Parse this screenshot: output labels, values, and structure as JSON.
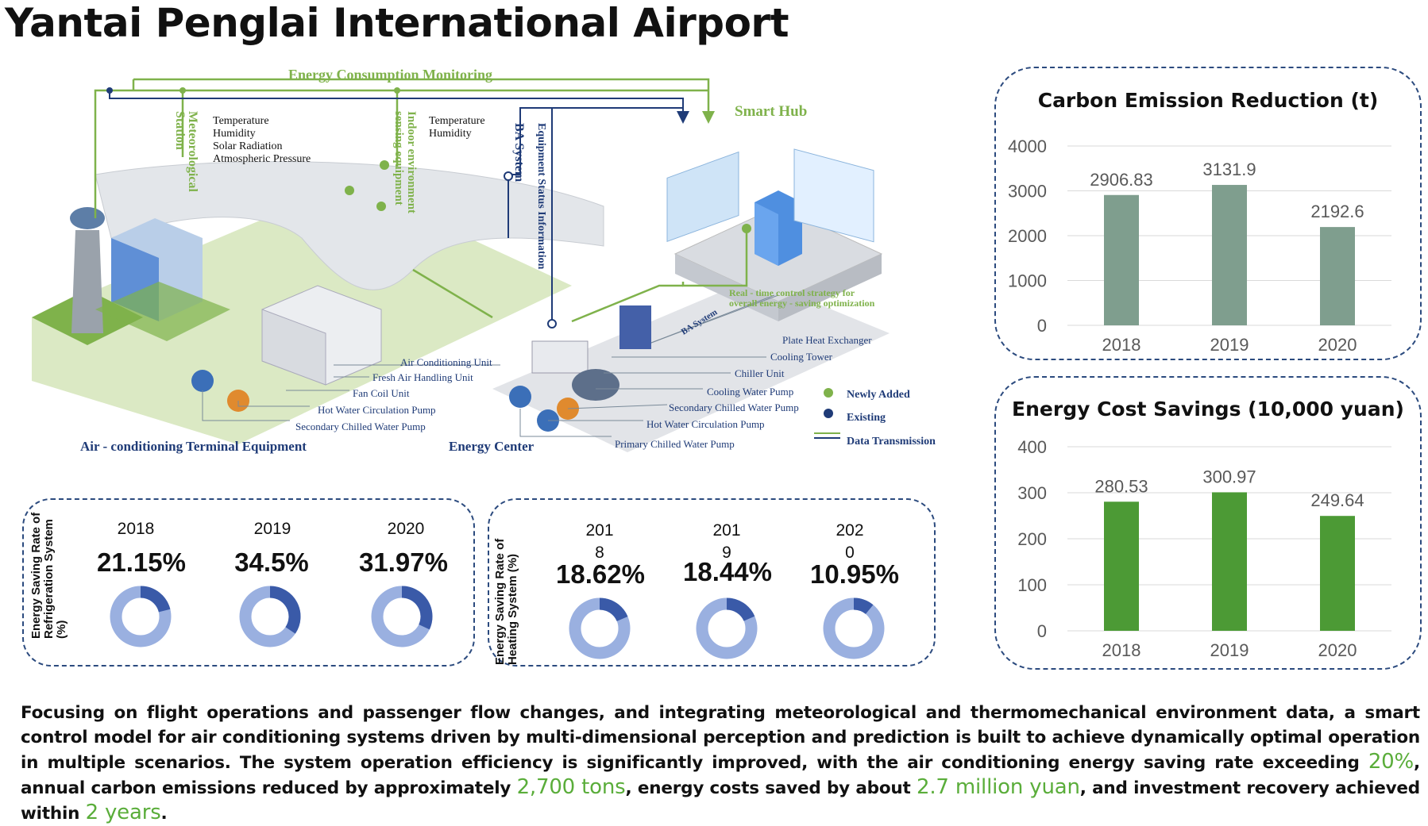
{
  "title": "Yantai Penglai International Airport",
  "diagram": {
    "energy_monitoring": "Energy Consumption Monitoring",
    "smart_hub": "Smart Hub",
    "meteorological_station": "Meteorological Station",
    "met_params": [
      "Temperature",
      "Humidity",
      "Solar Radiation",
      "Atmospheric Pressure"
    ],
    "indoor_sensing": "Indoor environment sensing equipment",
    "indoor_params": [
      "Temperature",
      "Humidity"
    ],
    "ba_system": "BA System",
    "equipment_status": "Equipment Status Information",
    "realtime_control": [
      "Real - time control strategy for",
      "overall energy - saving optimization"
    ],
    "ba_system_small": "BA System",
    "terminal_items": [
      "Air Conditioning Unit",
      "Fresh Air Handling Unit",
      "Fan Coil Unit",
      "Hot Water Circulation Pump",
      "Secondary Chilled Water Pump"
    ],
    "terminal_title": "Air - conditioning Terminal Equipment",
    "energy_items": [
      "Plate Heat Exchanger",
      "Cooling Tower",
      "Chiller Unit",
      "Cooling Water Pump",
      "Secondary Chilled Water Pump",
      "Hot Water Circulation Pump",
      "Primary Chilled Water Pump"
    ],
    "energy_center": "Energy Center",
    "legend": {
      "newly_added": "Newly Added",
      "existing": "Existing",
      "data_transmission": "Data Transmission",
      "green": "#7fb24b",
      "navy": "#1f3b77"
    }
  },
  "refrigeration": {
    "label": "Energy Saving Rate of Refrigeration System (%)",
    "years": [
      "2018",
      "2019",
      "2020"
    ],
    "values_text": [
      "21.15%",
      "34.5%",
      "31.97%"
    ]
  },
  "heating": {
    "label": "Energy Saving Rate of Heating System (%)",
    "years": [
      "201\n8",
      "201\n9",
      "202\n0"
    ],
    "values_text": [
      "18.62%",
      "18.44%",
      "10.95%"
    ]
  },
  "chart_data": [
    {
      "type": "bar",
      "title": "Carbon Emission Reduction (t)",
      "categories": [
        "2018",
        "2019",
        "2020"
      ],
      "values": [
        2906.83,
        3131.9,
        2192.6
      ],
      "value_labels": [
        "2906.83",
        "3131.9",
        "2192.6"
      ],
      "ylim": [
        0,
        4000
      ],
      "yticks": [
        "0",
        "1000",
        "2000",
        "3000",
        "4000"
      ],
      "grid": true,
      "color": "#7f9e8e"
    },
    {
      "type": "bar",
      "title": "Energy Cost Savings (10,000 yuan)",
      "categories": [
        "2018",
        "2019",
        "2020"
      ],
      "values": [
        280.53,
        300.97,
        249.64
      ],
      "value_labels": [
        "280.53",
        "300.97",
        "249.64"
      ],
      "ylim": [
        0,
        400
      ],
      "yticks": [
        "0",
        "100",
        "200",
        "300",
        "400"
      ],
      "grid": true,
      "color": "#4c9a35"
    },
    {
      "type": "pie",
      "title": "",
      "categories": [
        "2018",
        "2019",
        "2020"
      ],
      "values": [
        21.15,
        34.5,
        31.97
      ],
      "color": "#3a5aa8",
      "rest_color": "#9ab0e0"
    },
    {
      "type": "pie",
      "title": "",
      "categories": [
        "2018",
        "2019",
        "2020"
      ],
      "values": [
        18.62,
        18.44,
        10.95
      ],
      "color": "#3a5aa8",
      "rest_color": "#9ab0e0"
    }
  ],
  "summary": {
    "part1": "Focusing on flight operations and passenger flow changes, and integrating meteorological and thermomechanical environment data, a smart control model for air conditioning systems driven by multi-dimensional perception and prediction is built to achieve dynamically optimal operation in multiple scenarios. The system operation efficiency is significantly improved, with the air conditioning energy saving rate exceeding ",
    "hl1": "20%",
    "part2": ", annual carbon emissions reduced by approximately ",
    "hl2": "2,700 tons",
    "part3": ", energy costs saved by about ",
    "hl3": "2.7 million yuan",
    "part4": ", and investment recovery achieved within ",
    "hl4": "2 years",
    "part5": "."
  }
}
